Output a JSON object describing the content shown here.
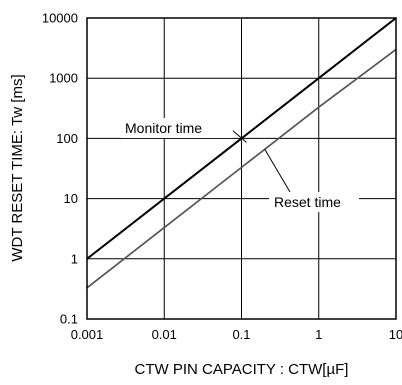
{
  "chart_data": {
    "type": "line",
    "x_scale": "log",
    "y_scale": "log",
    "xlim": [
      0.001,
      10
    ],
    "ylim": [
      0.1,
      10000
    ],
    "grid": true,
    "xlabel": "CTW PIN CAPACITY : CTW[µF]",
    "ylabel": "WDT RESET TIME: Tw [ms]",
    "x_ticks": [
      "0.001",
      "0.01",
      "0.1",
      "1",
      "10"
    ],
    "y_ticks": [
      "0.1",
      "1",
      "10",
      "100",
      "1000",
      "10000"
    ],
    "series": [
      {
        "name": "Monitor time",
        "color": "#000000",
        "x": [
          0.001,
          0.01,
          0.1,
          1,
          10
        ],
        "y": [
          1,
          10,
          100,
          1000,
          10000
        ]
      },
      {
        "name": "Reset time",
        "color": "#555555",
        "x": [
          0.001,
          0.01,
          0.1,
          1,
          10
        ],
        "y": [
          0.33,
          3.3,
          33,
          330,
          3000
        ]
      }
    ],
    "annotations": [
      {
        "text": "Monitor time",
        "points_to_series": 0
      },
      {
        "text": "Reset time",
        "points_to_series": 1
      }
    ]
  }
}
